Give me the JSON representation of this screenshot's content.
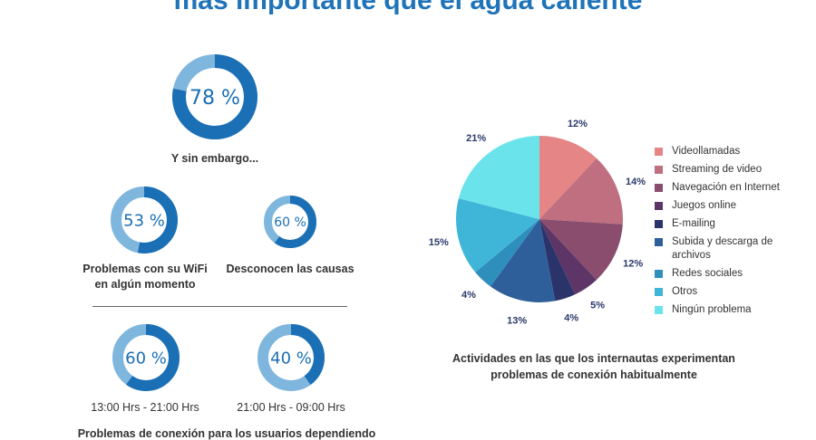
{
  "header": {
    "title": "más importante que el agua caliente"
  },
  "stats": {
    "s78": {
      "label": "78 %",
      "value": 78,
      "caption": "Y sin embargo..."
    },
    "s53": {
      "label": "53 %",
      "value": 53,
      "caption_line1": "Problemas con su WiFi",
      "caption_line2": "en algún momento"
    },
    "s60a": {
      "label": "60 %",
      "value": 60,
      "caption": "Desconocen las causas"
    },
    "s60b": {
      "label": "60 %",
      "value": 60,
      "caption": "13:00 Hrs - 21:00 Hrs"
    },
    "s40": {
      "label": "40 %",
      "value": 40,
      "caption": "21:00 Hrs - 09:00 Hrs"
    }
  },
  "bottom_caption": "Problemas de conexión para los usuarios dependiendo",
  "pie_caption": {
    "line1": "Actividades en las que los internautas experimentan",
    "line2": "problemas de conexión habitualmente"
  },
  "colors": {
    "donut_fill": "#1a6fb5",
    "donut_track": "#7fb6dd",
    "donut_text": "#1a6fb5",
    "title": "#1f73b8"
  },
  "chart_data": [
    {
      "type": "donut",
      "value": 78,
      "unit": "%",
      "caption": "Y sin embargo..."
    },
    {
      "type": "donut",
      "value": 53,
      "unit": "%",
      "caption": "Problemas con su WiFi en algún momento"
    },
    {
      "type": "donut",
      "value": 60,
      "unit": "%",
      "caption": "Desconocen las causas"
    },
    {
      "type": "donut",
      "value": 60,
      "unit": "%",
      "caption": "13:00 Hrs - 21:00 Hrs"
    },
    {
      "type": "donut",
      "value": 40,
      "unit": "%",
      "caption": "21:00 Hrs - 09:00 Hrs"
    },
    {
      "type": "pie",
      "title": "Actividades en las que los internautas experimentan problemas de conexión habitualmente",
      "legend_position": "right",
      "slices": [
        {
          "label": "Videollamadas",
          "value": 12,
          "color": "#e58585"
        },
        {
          "label": "Streaming de video",
          "value": 14,
          "color": "#bf6f80"
        },
        {
          "label": "Navegación en Internet",
          "value": 12,
          "color": "#8a4d6e"
        },
        {
          "label": "Juegos online",
          "value": 5,
          "color": "#5d3566"
        },
        {
          "label": "E-mailing",
          "value": 4,
          "color": "#2b336b"
        },
        {
          "label": "Subida y descarga de archivos",
          "value": 13,
          "color": "#2e5f9a"
        },
        {
          "label": "Redes sociales",
          "value": 4,
          "color": "#2e8fbd"
        },
        {
          "label": "Otros",
          "value": 15,
          "color": "#3fb6d8"
        },
        {
          "label": "Ningún problema",
          "value": 21,
          "color": "#6ae4ea"
        }
      ]
    }
  ],
  "legend": [
    {
      "label": "Videollamadas",
      "color": "#e58585"
    },
    {
      "label": "Streaming de video",
      "color": "#bf6f80"
    },
    {
      "label": "Navegación en Internet",
      "color": "#8a4d6e"
    },
    {
      "label": "Juegos online",
      "color": "#5d3566"
    },
    {
      "label": "E-mailing",
      "color": "#2b336b"
    },
    {
      "label": "Subida y descarga de archivos",
      "color": "#2e5f9a"
    },
    {
      "label": "Redes sociales",
      "color": "#2e8fbd"
    },
    {
      "label": " Otros",
      "color": "#3fb6d8"
    },
    {
      "label": "Ningún problema",
      "color": "#6ae4ea"
    }
  ]
}
